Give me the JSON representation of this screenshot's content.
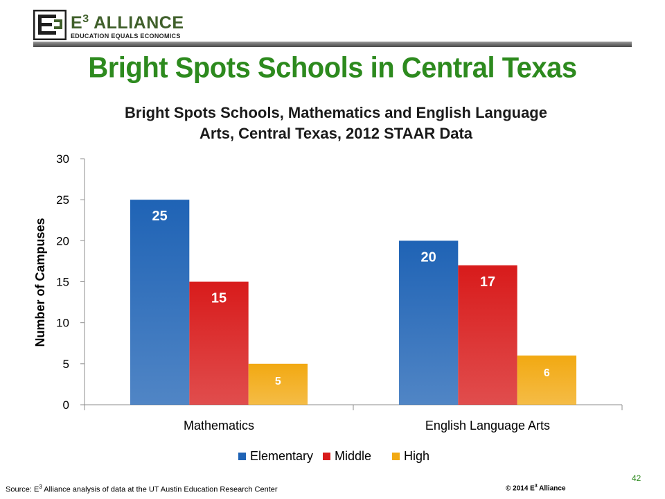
{
  "header": {
    "logo_name": "E",
    "logo_sup": "3",
    "logo_name_rest": " ALLIANCE",
    "logo_tagline": "EDUCATION EQUALS ECONOMICS"
  },
  "slide_title": "Bright Spots Schools in Central Texas",
  "footer": {
    "source_prefix": "Source: E",
    "source_sup": "3",
    "source_rest": " Alliance analysis of data at the UT Austin Education Research Center",
    "copyright_prefix": "© 2014 E",
    "copyright_sup": "3",
    "copyright_rest": " Alliance",
    "page_number": "42"
  },
  "colors": {
    "title_green": "#2d8a1e",
    "elementary": "#1f63b5",
    "middle": "#d81b1b",
    "high": "#f2a912"
  },
  "chart_data": {
    "type": "bar",
    "title_line1": "Bright Spots Schools, Mathematics and English Language",
    "title_line2": "Arts, Central Texas, 2012 STAAR Data",
    "xlabel": "",
    "ylabel": "Number of Campuses",
    "ylim": [
      0,
      30
    ],
    "yticks": [
      0,
      5,
      10,
      15,
      20,
      25,
      30
    ],
    "categories": [
      "Mathematics",
      "English Language Arts"
    ],
    "series": [
      {
        "name": "Elementary",
        "values": [
          25,
          20
        ],
        "color": "#1f63b5"
      },
      {
        "name": "Middle",
        "values": [
          15,
          17
        ],
        "color": "#d81b1b"
      },
      {
        "name": "High",
        "values": [
          5,
          6
        ],
        "color": "#f2a912"
      }
    ],
    "data_labels": true,
    "grid": false,
    "legend_position": "bottom"
  }
}
